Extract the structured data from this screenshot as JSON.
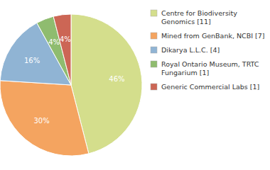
{
  "chart_data": {
    "type": "pie",
    "categories": [
      "Centre for Biodiversity\nGenomics [11]",
      "Mined from GenBank, NCBI [7]",
      "Dikarya L.L.C. [4]",
      "Royal Ontario Museum, TRTC\nFungarium [1]",
      "Generic Commercial Labs [1]"
    ],
    "values": [
      46,
      30,
      16,
      4,
      4
    ],
    "value_labels": [
      "46%",
      "30%",
      "16%",
      "4%",
      "4%"
    ],
    "colors": [
      "#d4de8c",
      "#f4a460",
      "#90b4d4",
      "#8fbc6f",
      "#cc6655"
    ],
    "data_labels": true,
    "legend": "right"
  }
}
